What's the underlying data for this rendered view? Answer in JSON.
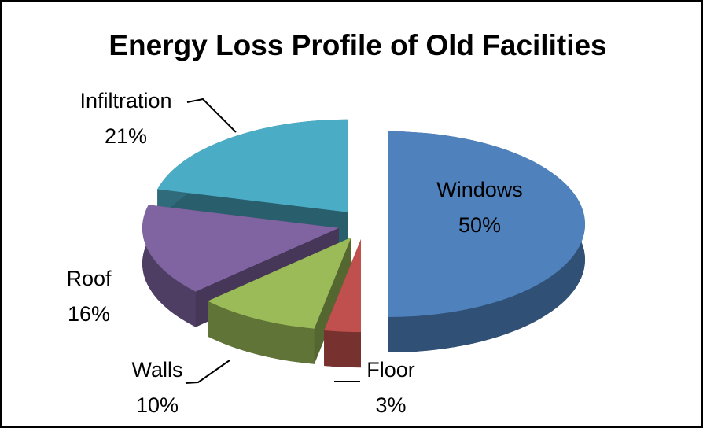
{
  "chart_data": {
    "type": "pie",
    "title": "Energy Loss Profile of Old Facilities",
    "categories": [
      "Windows",
      "Floor",
      "Walls",
      "Roof",
      "Infiltration"
    ],
    "values": [
      50,
      3,
      10,
      16,
      21
    ],
    "value_labels": [
      "50%",
      "3%",
      "10%",
      "16%",
      "21%"
    ],
    "colors": [
      "#4f81bd",
      "#c0504d",
      "#9bbb59",
      "#8064a2",
      "#4bacc6"
    ]
  }
}
